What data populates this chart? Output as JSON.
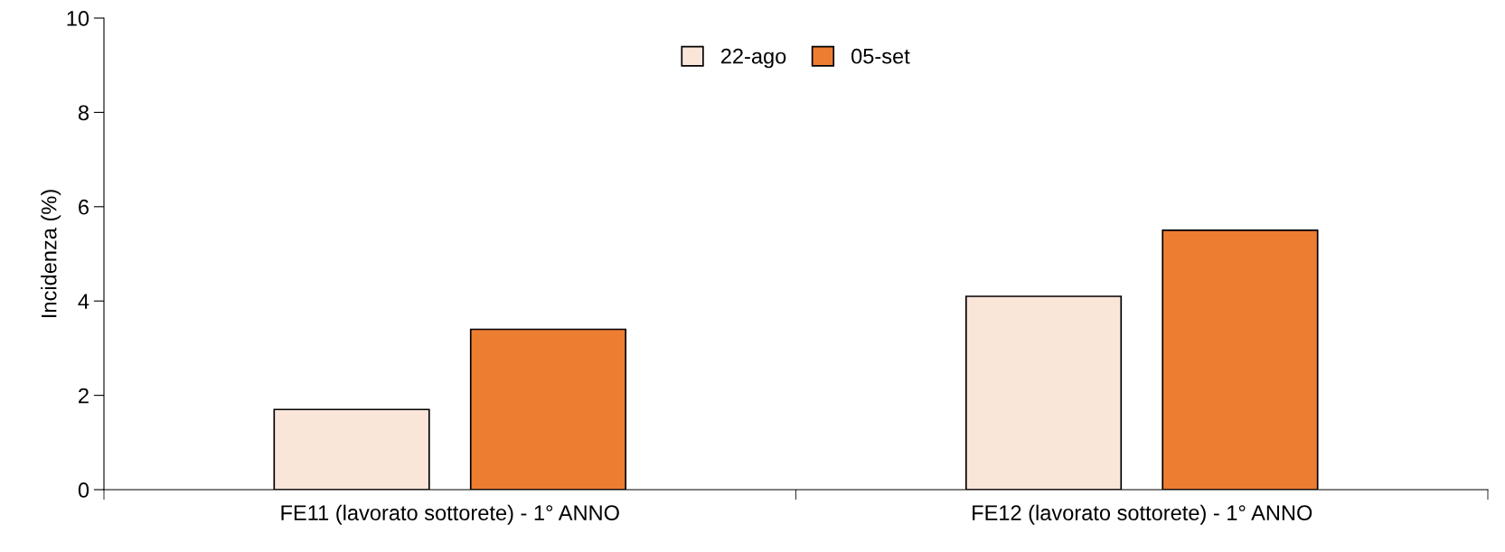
{
  "chart_data": {
    "type": "bar",
    "ylabel": "Incidenza (%)",
    "categories": [
      "FE11 (lavorato sottorete) - 1° ANNO",
      "FE12 (lavorato sottorete) - 1° ANNO"
    ],
    "series": [
      {
        "name": "22-ago",
        "color": "#fae5d9",
        "values": [
          1.7,
          4.1
        ]
      },
      {
        "name": "05-set",
        "color": "#ed7d31",
        "values": [
          3.4,
          5.5
        ]
      }
    ],
    "ylim": [
      0,
      10
    ],
    "yticks": [
      0,
      2,
      4,
      6,
      8,
      10
    ],
    "grid": false,
    "legend": "top"
  }
}
